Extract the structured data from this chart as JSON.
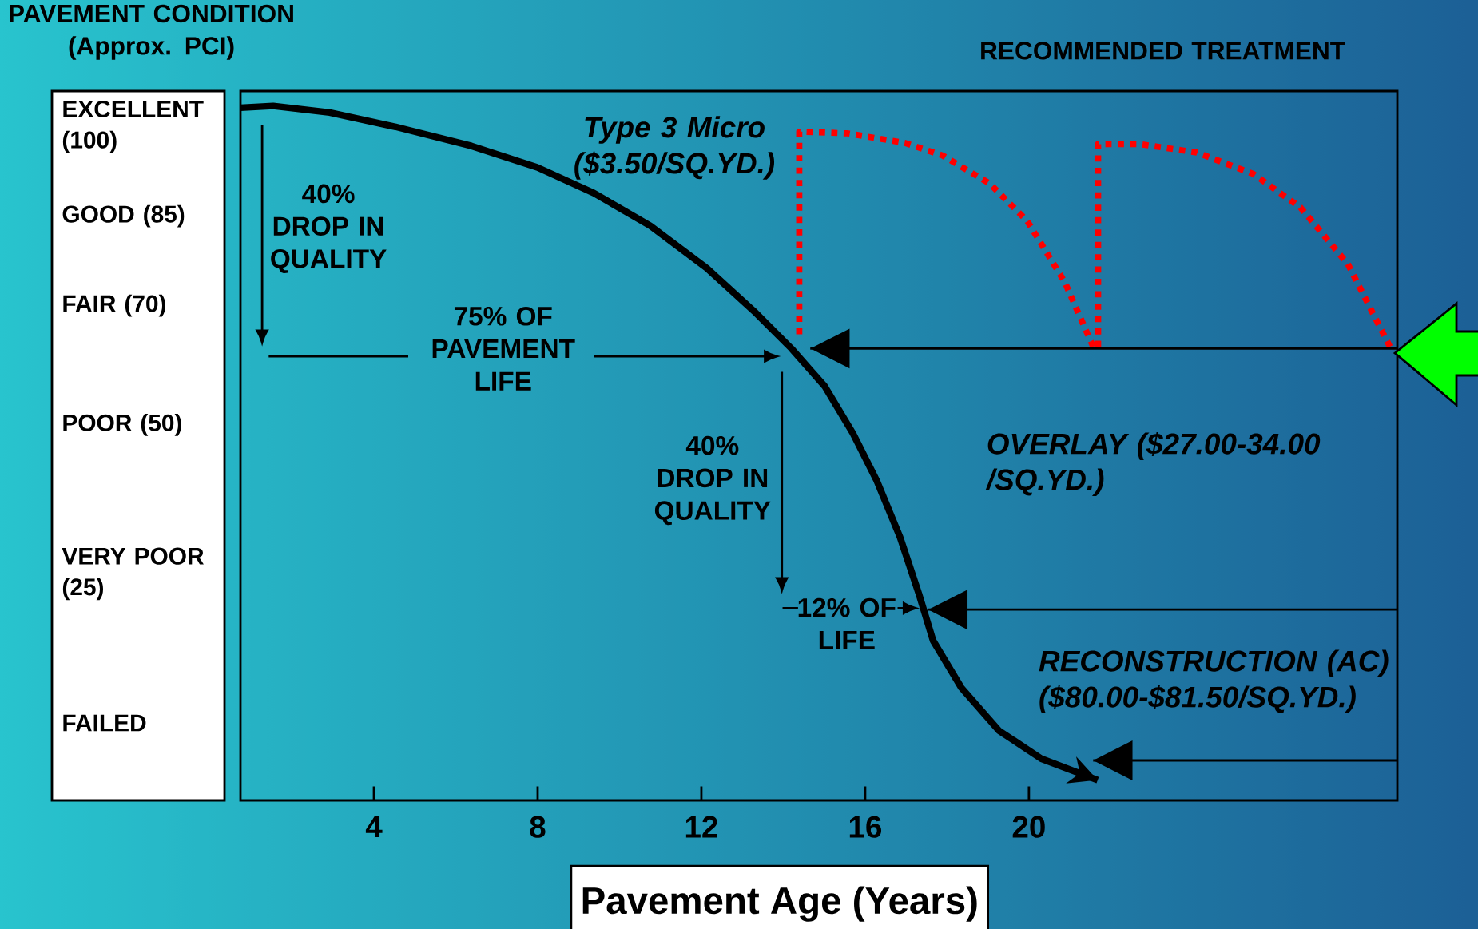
{
  "chart_data": {
    "type": "line",
    "xlabel": "Pavement Age (Years)",
    "ylabel": "PAVEMENT CONDITION (Approx. PCI)",
    "xlim": [
      0.74,
      29.0
    ],
    "ylim": [
      -13,
      106
    ],
    "xticks": [
      4,
      8,
      12,
      16,
      20
    ],
    "yticks": [
      {
        "value": 100,
        "label": "EXCELLENT (100)"
      },
      {
        "value": 85,
        "label": "GOOD (85)"
      },
      {
        "value": 70,
        "label": "FAIR (70)"
      },
      {
        "value": 50,
        "label": "POOR (50)"
      },
      {
        "value": 25,
        "label": "VERY POOR (25)"
      },
      {
        "value": 0,
        "label": "FAILED"
      }
    ],
    "series": [
      {
        "color": "#000000",
        "x": [
          0.74,
          1.54,
          2.92,
          4.53,
          6.38,
          7.99,
          9.37,
          10.75,
          12.13,
          13.28,
          14.2,
          15.01,
          15.7,
          16.28,
          16.85,
          17.31,
          17.66,
          18.35,
          19.27,
          20.3,
          21.68
        ],
        "values": [
          103.2,
          103.5,
          102.4,
          100,
          96.8,
          93.2,
          88.9,
          83.4,
          76.3,
          69.1,
          62.8,
          56.5,
          48.6,
          40.7,
          31.2,
          21.7,
          13.8,
          5.9,
          -1.3,
          -6.0,
          -9.6
        ]
      },
      {
        "color": "#ff0000",
        "line_style": "dotted",
        "x": [
          14.39,
          14.39,
          15.58,
          16.97,
          17.89,
          19.04,
          19.96,
          20.88,
          21.57
        ],
        "values": [
          65.2,
          99.2,
          98.9,
          97.3,
          95.2,
          90.5,
          84.2,
          73.9,
          63.1
        ]
      },
      {
        "color": "#ff0000",
        "line_style": "dotted",
        "x": [
          21.69,
          21.69,
          22.72,
          24.1,
          25.48,
          26.63,
          27.79,
          28.82
        ],
        "values": [
          63.1,
          97.1,
          97.1,
          95.7,
          92.1,
          86.5,
          77.0,
          63.1
        ]
      },
      {
        "color": "#000000",
        "x": [
          29.0,
          14.66
        ],
        "values": [
          62.8,
          62.8
        ]
      },
      {
        "color": "#000000",
        "x": [
          29.0,
          17.54
        ],
        "values": [
          19.0,
          19.0
        ]
      },
      {
        "color": "#000000",
        "x": [
          29.0,
          21.57
        ],
        "values": [
          -6.3,
          -6.3
        ]
      }
    ],
    "annotations": [
      "40% DROP IN QUALITY",
      "75% OF PAVEMENT LIFE",
      "40% DROP IN QUALITY",
      "12% OF LIFE",
      "Type 3 Micro ($3.50/SQ.YD.)",
      "OVERLAY ($27.00-34.00 /SQ.YD.)",
      "RECONSTRUCTION (AC) ($80.00-$81.50/SQ.YD.)",
      "RECOMMENDED TREATMENT"
    ]
  }
}
